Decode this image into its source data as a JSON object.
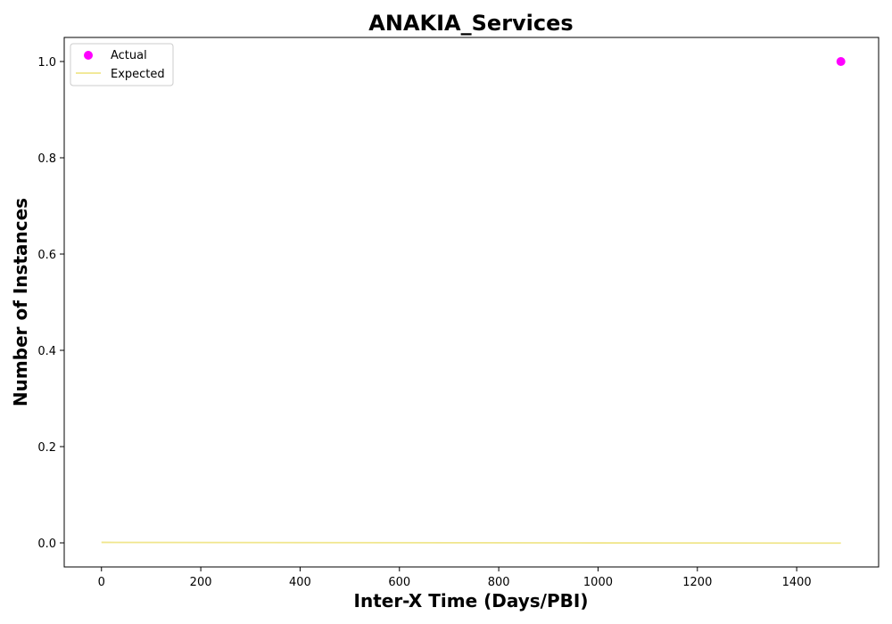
{
  "chart_data": {
    "type": "scatter",
    "title": "ANAKIA_Services",
    "xlabel": "Inter-X Time (Days/PBI)",
    "ylabel": "Number of Instances",
    "xlim": [
      -75,
      1565
    ],
    "ylim": [
      -0.05,
      1.05
    ],
    "x_ticks": [
      0,
      200,
      400,
      600,
      800,
      1000,
      1200,
      1400
    ],
    "y_ticks": [
      0.0,
      0.2,
      0.4,
      0.6,
      0.8,
      1.0
    ],
    "x_tick_labels": [
      "0",
      "200",
      "400",
      "600",
      "800",
      "1000",
      "1200",
      "1400"
    ],
    "y_tick_labels": [
      "0.0",
      "0.2",
      "0.4",
      "0.6",
      "0.8",
      "1.0"
    ],
    "grid": false,
    "legend_position": "top-left",
    "series": [
      {
        "name": "Actual",
        "kind": "scatter",
        "color": "#ff00ff",
        "points": [
          [
            1489,
            1.0
          ]
        ]
      },
      {
        "name": "Expected",
        "kind": "line",
        "color": "#f0e68c",
        "points": [
          [
            0,
            0.001
          ],
          [
            250,
            0.0007
          ],
          [
            500,
            0.0004
          ],
          [
            750,
            0.0002
          ],
          [
            1000,
            -0.0001
          ],
          [
            1250,
            -0.0003
          ],
          [
            1489,
            -0.0005
          ]
        ]
      }
    ]
  }
}
